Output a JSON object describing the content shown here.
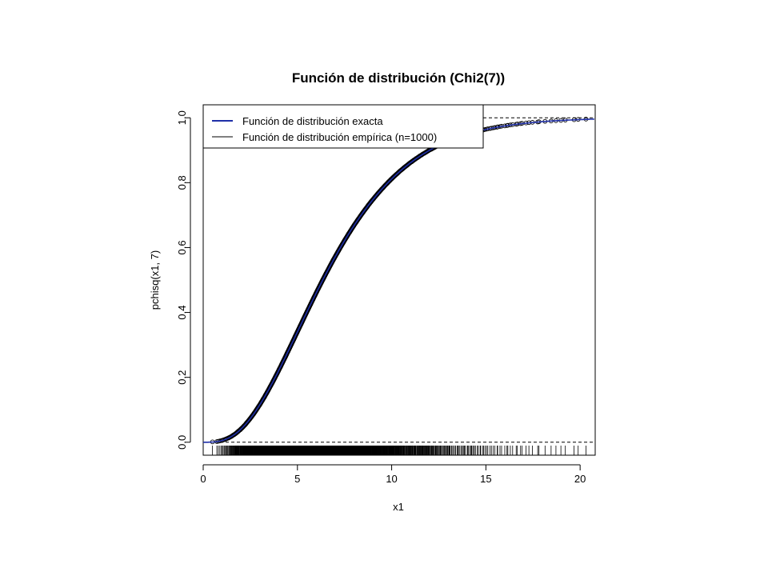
{
  "chart_data": {
    "type": "line",
    "title": "Función de distribución (Chi2(7))",
    "xlabel": "x1",
    "ylabel": "pchisq(x1, 7)",
    "xlim": [
      0,
      20.8
    ],
    "ylim": [
      -0.04,
      1.04
    ],
    "xticks": [
      "0",
      "5",
      "10",
      "15",
      "20"
    ],
    "yticks": [
      "0.0",
      "0.2",
      "0.4",
      "0.6",
      "0.8",
      "1.0"
    ],
    "degrees_of_freedom": 7,
    "sample_size": 1000,
    "reference_lines": [
      0,
      1
    ],
    "rug": true,
    "grid": false,
    "legend_position": "top-left",
    "series": [
      {
        "name": "Función de distribución exacta",
        "kind": "exact-cdf",
        "color": "#1f2fa8"
      },
      {
        "name": "Función de distribución empírica (n=1000)",
        "kind": "empirical-cdf",
        "color": "#000000"
      }
    ]
  }
}
